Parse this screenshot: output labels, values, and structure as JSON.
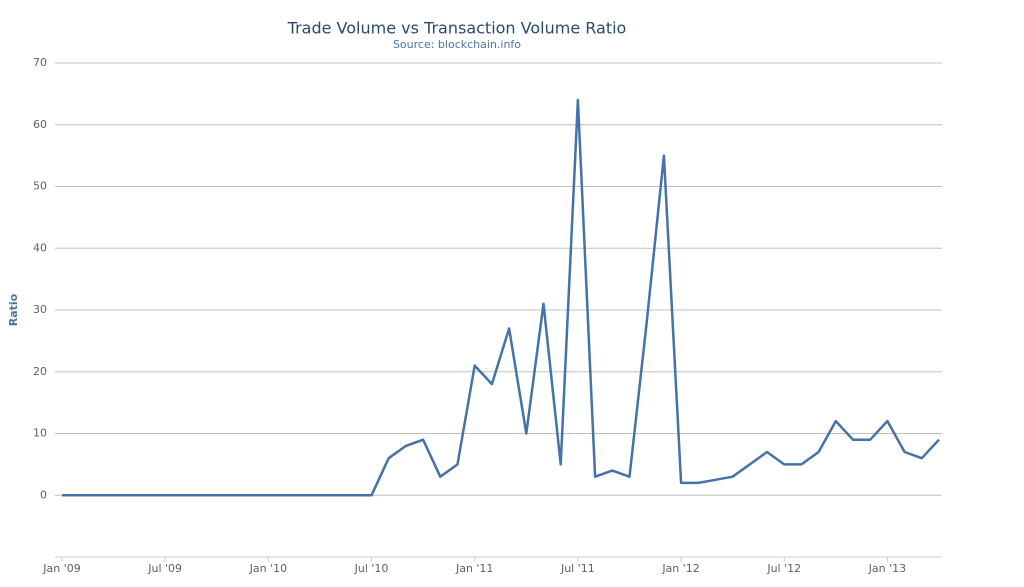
{
  "chart_data": {
    "type": "line",
    "title": "Trade Volume vs Transaction Volume Ratio",
    "subtitle": "Source: blockchain.info",
    "ylabel": "Ratio",
    "x": [
      "2009-01",
      "2009-02",
      "2009-03",
      "2009-04",
      "2009-05",
      "2009-06",
      "2009-07",
      "2009-08",
      "2009-09",
      "2009-10",
      "2009-11",
      "2009-12",
      "2010-01",
      "2010-02",
      "2010-03",
      "2010-04",
      "2010-05",
      "2010-06",
      "2010-07",
      "2010-08",
      "2010-09",
      "2010-10",
      "2010-11",
      "2010-12",
      "2011-01",
      "2011-02",
      "2011-03",
      "2011-04",
      "2011-05",
      "2011-06",
      "2011-07",
      "2011-08",
      "2011-09",
      "2011-10",
      "2011-11",
      "2011-12",
      "2012-01",
      "2012-02",
      "2012-03",
      "2012-04",
      "2012-05",
      "2012-06",
      "2012-07",
      "2012-08",
      "2012-09",
      "2012-10",
      "2012-11",
      "2012-12",
      "2013-01",
      "2013-02",
      "2013-03",
      "2013-04"
    ],
    "series": [
      {
        "name": "Ratio",
        "color": "#4572a7",
        "values": [
          0,
          0,
          0,
          0,
          0,
          0,
          0,
          0,
          0,
          0,
          0,
          0,
          0,
          0,
          0,
          0,
          0,
          0,
          0,
          6,
          8,
          9,
          3,
          5,
          21,
          18,
          27,
          10,
          31,
          5,
          64,
          3,
          4,
          3,
          28,
          55,
          2,
          2,
          2.5,
          3,
          5,
          7,
          5,
          5,
          7,
          12,
          9,
          9,
          12,
          7,
          6,
          9
        ]
      }
    ],
    "xlim": [
      "2009-01",
      "2013-04"
    ],
    "xticks": [
      {
        "value": "2009-01",
        "label": "Jan '09"
      },
      {
        "value": "2009-07",
        "label": "Jul '09"
      },
      {
        "value": "2010-01",
        "label": "Jan '10"
      },
      {
        "value": "2010-07",
        "label": "Jul '10"
      },
      {
        "value": "2011-01",
        "label": "Jan '11"
      },
      {
        "value": "2011-07",
        "label": "Jul '11"
      },
      {
        "value": "2012-01",
        "label": "Jan '12"
      },
      {
        "value": "2012-07",
        "label": "Jul '12"
      },
      {
        "value": "2013-01",
        "label": "Jan '13"
      }
    ],
    "ylim": [
      -10,
      70
    ],
    "yticks": [
      0,
      10,
      20,
      30,
      40,
      50,
      60,
      70
    ],
    "grid": true
  }
}
